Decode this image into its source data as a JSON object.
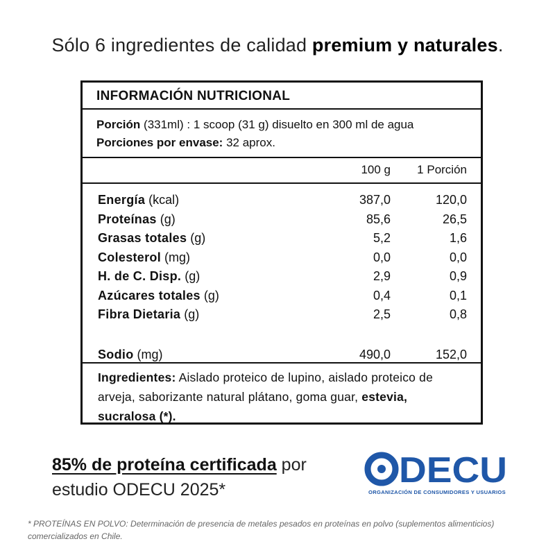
{
  "headline": {
    "prefix": "Sólo 6 ingredientes de calidad ",
    "bold": "premium y naturales",
    "suffix": "."
  },
  "nutrition": {
    "title": "INFORMACIÓN NUTRICIONAL",
    "portion_label": "Porción",
    "portion_volume": "(331ml) :",
    "portion_value": "1 scoop (31 g) disuelto en 300 ml de agua",
    "servings_label": "Porciones por envase:",
    "servings_value": "32 aprox.",
    "col_100g": "100 g",
    "col_portion": "1 Porción",
    "rows": [
      {
        "name": "Energía",
        "unit": "(kcal)",
        "v100": "387,0",
        "vport": "120,0"
      },
      {
        "name": "Proteínas",
        "unit": "(g)",
        "v100": "85,6",
        "vport": "26,5"
      },
      {
        "name": "Grasas totales",
        "unit": "(g)",
        "v100": "5,2",
        "vport": "1,6"
      },
      {
        "name": "Colesterol",
        "unit": "(mg)",
        "v100": "0,0",
        "vport": "0,0"
      },
      {
        "name": "H. de C. Disp.",
        "unit": "(g)",
        "v100": "2,9",
        "vport": "0,9"
      },
      {
        "name": "Azúcares totales",
        "unit": "(g)",
        "v100": "0,4",
        "vport": "0,1"
      },
      {
        "name": "Fibra Dietaria",
        "unit": "(g)",
        "v100": "2,5",
        "vport": "0,8"
      },
      {
        "name": "Sodio",
        "unit": "(mg)",
        "v100": "490,0",
        "vport": "152,0"
      }
    ],
    "ingredients_label": "Ingredientes:",
    "ingredients_text": " Aislado proteico de lupino, aislado proteico de arveja, saborizante natural plátano, goma guar, ",
    "ingredients_bold_end": "estevia, sucralosa (*)."
  },
  "certification": {
    "underlined": "85% de proteína certificada",
    "rest": " por",
    "line2": "estudio ODECU 2025*"
  },
  "logo": {
    "word": "ODECU",
    "subtitle": "ORGANIZACIÓN DE CONSUMIDORES Y USUARIOS",
    "color": "#1f57a8"
  },
  "footnote": "* PROTEÍNAS EN POLVO: Determinación de presencia de metales pesados en proteínas en polvo (suplementos alimenticios) comercializados en Chile."
}
